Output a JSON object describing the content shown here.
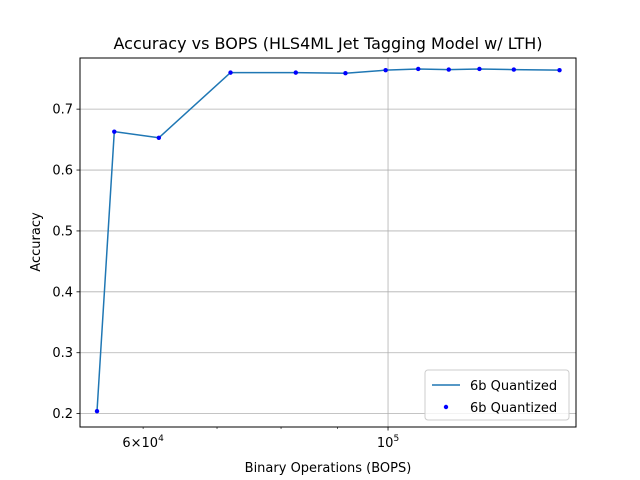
{
  "chart_data": {
    "type": "line",
    "title": "Accuracy vs BOPS (HLS4ML Jet Tagging Model w/ LTH)",
    "xlabel": "Binary Operations (BOPS)",
    "ylabel": "Accuracy",
    "xscale": "log",
    "xlim": [
      52600,
      148000
    ],
    "ylim": [
      0.178,
      0.784
    ],
    "x_major_ticks": [
      {
        "value": 100000,
        "label": "10^5"
      }
    ],
    "x_labeled_minor_ticks": [
      {
        "value": 60000,
        "label": "6×10^4"
      }
    ],
    "x_minor_ticks": [
      60000,
      70000,
      80000,
      90000,
      200000
    ],
    "y_ticks": [
      0.2,
      0.3,
      0.4,
      0.5,
      0.6,
      0.7
    ],
    "grid": true,
    "legend_position": "lower-right",
    "series": [
      {
        "name": "6b Quantized",
        "kind": "line",
        "color": "#1f77b4",
        "x": [
          54500,
          56500,
          62000,
          72000,
          82500,
          91500,
          99500,
          106500,
          113500,
          121000,
          130000,
          143000
        ],
        "y": [
          0.204,
          0.663,
          0.653,
          0.76,
          0.76,
          0.759,
          0.764,
          0.766,
          0.765,
          0.766,
          0.765,
          0.764
        ]
      },
      {
        "name": "6b Quantized",
        "kind": "scatter",
        "color": "#0000ff",
        "x": [
          54500,
          56500,
          62000,
          72000,
          82500,
          91500,
          99500,
          106500,
          113500,
          121000,
          130000,
          143000
        ],
        "y": [
          0.204,
          0.663,
          0.653,
          0.76,
          0.76,
          0.759,
          0.764,
          0.766,
          0.765,
          0.766,
          0.765,
          0.764
        ]
      }
    ]
  }
}
